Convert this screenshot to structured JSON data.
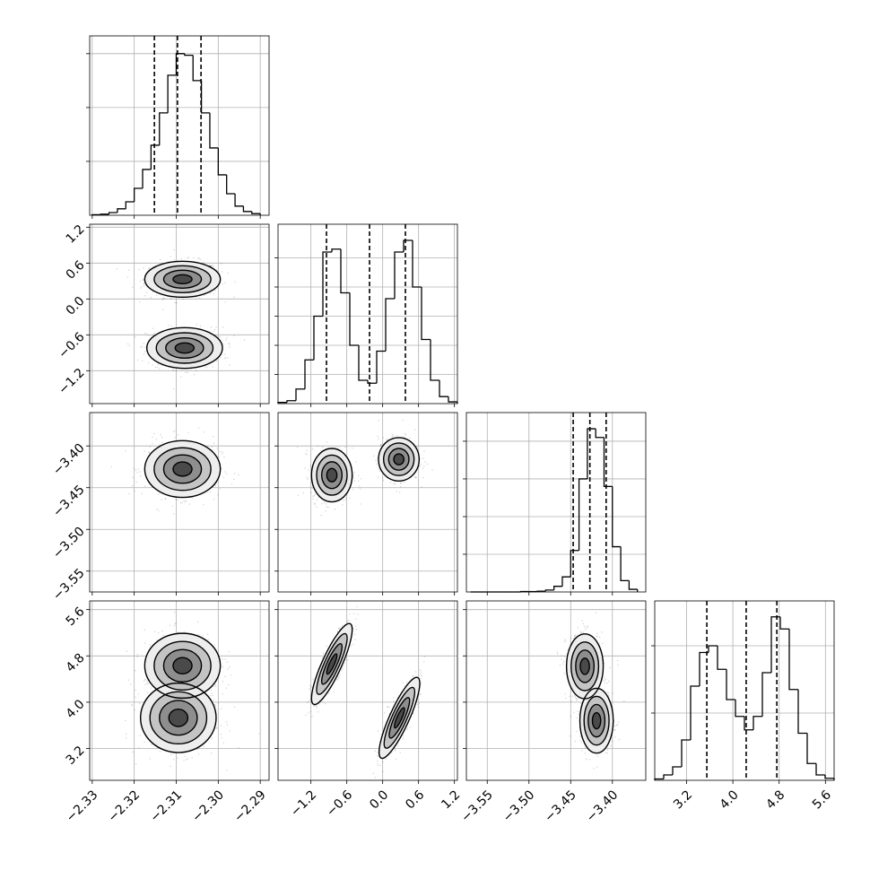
{
  "chart_data": {
    "type": "corner",
    "grid": true,
    "line_color": "#000000",
    "point_color": "#000000",
    "params": [
      {
        "lim": [
          -2.3306,
          -2.2879
        ],
        "ticks": [
          {
            "value": -2.33,
            "label": "−2.33"
          },
          {
            "value": -2.32,
            "label": "−2.32"
          },
          {
            "value": -2.31,
            "label": "−2.31"
          },
          {
            "value": -2.3,
            "label": "−2.30"
          },
          {
            "value": -2.29,
            "label": "−2.29"
          }
        ],
        "bins": [
          -2.33,
          -2.328,
          -2.326,
          -2.324,
          -2.322,
          -2.32,
          -2.318,
          -2.316,
          -2.314,
          -2.312,
          -2.31,
          -2.308,
          -2.306,
          -2.304,
          -2.302,
          -2.3,
          -2.298,
          -2.296,
          -2.294,
          -2.292,
          -2.29
        ],
        "counts": [
          1,
          2,
          5,
          12,
          25,
          50,
          85,
          130,
          190,
          260,
          300,
          297,
          250,
          190,
          125,
          75,
          40,
          17,
          7,
          3
        ],
        "hist_ylim": [
          0,
          333
        ],
        "hist_yticks": [
          100,
          200,
          300
        ],
        "quantiles": [
          -2.3152,
          -2.3097,
          -2.3041
        ]
      },
      {
        "lim": [
          -1.75,
          1.25
        ],
        "ticks": [
          {
            "value": -1.2,
            "label": "−1.2"
          },
          {
            "value": -0.6,
            "label": "−0.6"
          },
          {
            "value": 0,
            "label": "0.0"
          },
          0.6,
          1.2
        ],
        "bins": [
          -1.75,
          -1.6,
          -1.45,
          -1.3,
          -1.15,
          -1.0,
          -0.85,
          -0.7,
          -0.55,
          -0.4,
          -0.25,
          -0.1,
          0.05,
          0.2,
          0.35,
          0.5,
          0.65,
          0.8,
          0.95,
          1.1,
          1.25
        ],
        "counts": [
          2,
          5,
          25,
          75,
          150,
          260,
          265,
          190,
          100,
          40,
          35,
          90,
          180,
          260,
          280,
          200,
          110,
          40,
          12,
          3
        ],
        "hist_ylim": [
          0,
          307.7
        ],
        "hist_yticks": [
          50,
          100,
          150,
          200,
          250
        ],
        "quantiles": [
          -0.94,
          -0.22,
          0.38
        ]
      },
      {
        "lim": [
          -3.575,
          -3.36
        ],
        "ticks": [
          {
            "value": -3.55,
            "label": "−3.55"
          },
          {
            "value": -3.5,
            "label": "−3.50"
          },
          {
            "value": -3.45,
            "label": "−3.45"
          },
          {
            "value": -3.4,
            "label": "−3.40"
          }
        ],
        "bins": [
          -3.57,
          -3.56,
          -3.55,
          -3.54,
          -3.53,
          -3.52,
          -3.51,
          -3.5,
          -3.49,
          -3.48,
          -3.47,
          -3.46,
          -3.45,
          -3.44,
          -3.43,
          -3.42,
          -3.41,
          -3.4,
          -3.39,
          -3.38,
          -3.37
        ],
        "counts": [
          0,
          0,
          0,
          0,
          0,
          0,
          1,
          1,
          2,
          5,
          15,
          40,
          110,
          300,
          433,
          410,
          280,
          120,
          30,
          7
        ],
        "hist_ylim": [
          0,
          476
        ],
        "hist_yticks": [
          100,
          200,
          300,
          400
        ],
        "quantiles": [
          -3.447,
          -3.427,
          -3.4075
        ]
      },
      {
        "lim": [
          2.65,
          5.75
        ],
        "ticks": [
          3.2,
          {
            "value": 4,
            "label": "4.0"
          },
          4.8,
          5.6
        ],
        "bins": [
          2.65,
          2.805,
          2.96,
          3.115,
          3.27,
          3.425,
          3.58,
          3.735,
          3.89,
          4.045,
          4.2,
          4.355,
          4.51,
          4.665,
          4.82,
          4.975,
          5.13,
          5.285,
          5.44,
          5.595,
          5.75
        ],
        "counts": [
          2,
          8,
          20,
          60,
          140,
          190,
          200,
          165,
          120,
          95,
          75,
          95,
          160,
          243,
          225,
          135,
          70,
          25,
          8,
          3
        ],
        "hist_ylim": [
          0,
          266.7
        ],
        "hist_yticks": [
          100,
          200
        ],
        "quantiles": [
          3.55,
          4.23,
          4.76
        ]
      }
    ],
    "panels": [
      {
        "xparam": 0,
        "yparam": 1,
        "blobs": [
          {
            "x": -2.3085,
            "y": 0.33,
            "sx": 0.0045,
            "sy": 0.15,
            "rho": 0
          },
          {
            "x": -2.308,
            "y": -0.82,
            "sx": 0.0045,
            "sy": 0.17,
            "rho": 0
          }
        ]
      },
      {
        "xparam": 0,
        "yparam": 2,
        "blobs": [
          {
            "x": -2.3085,
            "y": -3.4277,
            "sx": 0.0045,
            "sy": 0.017,
            "rho": 0
          }
        ]
      },
      {
        "xparam": 1,
        "yparam": 2,
        "blobs": [
          {
            "x": -0.85,
            "y": -3.435,
            "sx": 0.17,
            "sy": 0.016,
            "rho": 0
          },
          {
            "x": 0.27,
            "y": -3.416,
            "sx": 0.17,
            "sy": 0.013,
            "rho": 0
          }
        ]
      },
      {
        "xparam": 0,
        "yparam": 3,
        "blobs": [
          {
            "x": -2.3085,
            "y": 4.63,
            "sx": 0.0045,
            "sy": 0.28,
            "rho": 0
          },
          {
            "x": -2.3095,
            "y": 3.73,
            "sx": 0.0045,
            "sy": 0.3,
            "rho": 0
          }
        ]
      },
      {
        "xparam": 1,
        "yparam": 3,
        "blobs": [
          {
            "x": -0.85,
            "y": 4.66,
            "sx": 0.17,
            "sy": 0.35,
            "rho": 0.85
          },
          {
            "x": 0.28,
            "y": 3.73,
            "sx": 0.17,
            "sy": 0.35,
            "rho": 0.85
          }
        ]
      },
      {
        "xparam": 2,
        "yparam": 3,
        "blobs": [
          {
            "x": -3.433,
            "y": 4.62,
            "sx": 0.011,
            "sy": 0.28,
            "rho": 0
          },
          {
            "x": -3.419,
            "y": 3.68,
            "sx": 0.01,
            "sy": 0.28,
            "rho": 0
          }
        ]
      }
    ]
  }
}
